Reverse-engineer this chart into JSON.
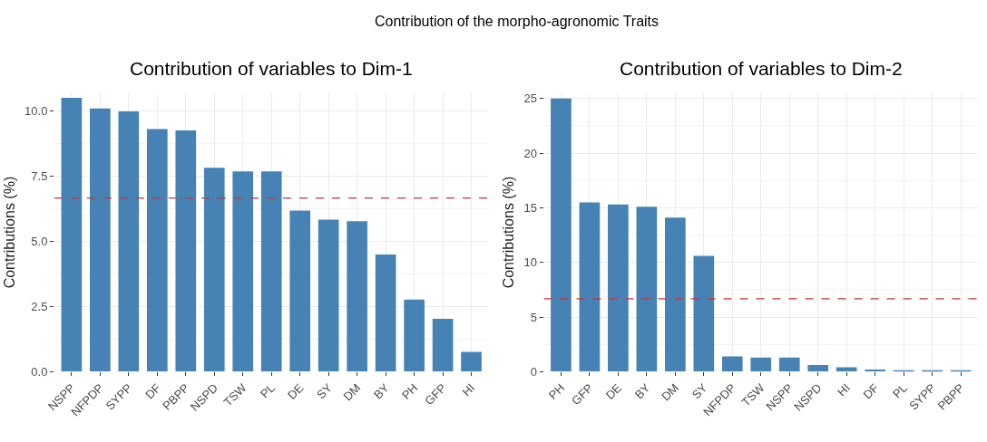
{
  "chart_data": [
    {
      "type": "bar",
      "title": "Contribution of variables to Dim-1",
      "ylabel": "Contributions (%)",
      "annotations": [
        "Contribution of the morpho-agronomic Traits"
      ],
      "categories": [
        "NSPP",
        "NFPDP",
        "SYPP",
        "DF",
        "PBPP",
        "NSPD",
        "TSW",
        "PL",
        "DE",
        "SY",
        "DM",
        "BY",
        "PH",
        "GFP",
        "HI"
      ],
      "values": [
        10.52,
        10.11,
        10.0,
        9.32,
        9.27,
        7.83,
        7.69,
        7.69,
        6.19,
        5.84,
        5.78,
        4.5,
        2.77,
        2.03,
        0.76
      ],
      "color": "#4682b4",
      "ylim": [
        0,
        10.7
      ],
      "yticks": [
        {
          "value": 0,
          "label": "0.0"
        },
        2.5,
        {
          "value": 5,
          "label": "5.0"
        },
        7.5,
        {
          "value": 10,
          "label": "10.0"
        }
      ],
      "ref_lines": [
        {
          "axis": "y",
          "value": 6.67,
          "label": null,
          "color": "#cc3333",
          "line_style": "dashed"
        }
      ],
      "grid": true
    },
    {
      "type": "bar",
      "title": "Contribution of variables to Dim-2",
      "ylabel": "Contributions (%)",
      "categories": [
        "PH",
        "GFP",
        "DE",
        "BY",
        "DM",
        "SY",
        "NFPDP",
        "TSW",
        "NSPP",
        "NSPD",
        "HI",
        "DF",
        "PL",
        "SYPP",
        "PBPP"
      ],
      "values": [
        25.0,
        15.5,
        15.3,
        15.1,
        14.1,
        10.6,
        1.4,
        1.3,
        1.3,
        0.6,
        0.4,
        0.2,
        0.1,
        0.1,
        0.1
      ],
      "color": "#4682b4",
      "ylim": [
        0,
        25.5
      ],
      "yticks": [
        0,
        5,
        10,
        15,
        20,
        25
      ],
      "ref_lines": [
        {
          "axis": "y",
          "value": 6.67,
          "label": null,
          "color": "#cc3333",
          "line_style": "dashed"
        }
      ],
      "grid": true
    }
  ]
}
